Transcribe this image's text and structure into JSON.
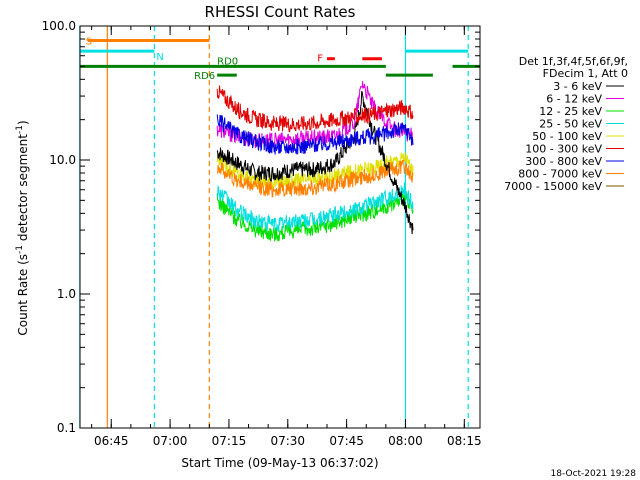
{
  "chart_data": {
    "type": "line",
    "title": "RHESSI Count Rates",
    "xlabel": "Start Time (09-May-13 06:37:02)",
    "ylabel_parts": [
      "Count Rate (s",
      "-1",
      " detector segment",
      "-1",
      ")"
    ],
    "yscale": "log",
    "ylim": [
      0.1,
      100.0
    ],
    "xlim": [
      "06:37:02",
      "08:19:00"
    ],
    "x_tick_labels": [
      "06:45",
      "07:00",
      "07:15",
      "07:30",
      "07:45",
      "08:00",
      "08:15"
    ],
    "x_tick_minutes": [
      405,
      420,
      435,
      450,
      465,
      480,
      495
    ],
    "y_tick_labels": [
      "0.1",
      "1.0",
      "10.0",
      "100.0"
    ],
    "y_tick_values": [
      0.1,
      1.0,
      10.0,
      100.0
    ],
    "grid": false,
    "legend_header": [
      "Det 1f,3f,4f,5f,6f,9f,",
      "FDecim 1, Att 0"
    ],
    "series": [
      {
        "name": "3 - 6 keV",
        "color": "#000000",
        "x": [
          "07:12",
          "07:17",
          "07:22",
          "07:27",
          "07:32",
          "07:37",
          "07:42",
          "07:47",
          "07:49",
          "07:52",
          "07:57",
          "08:00",
          "08:02"
        ],
        "y": [
          11.5,
          9.5,
          8.0,
          8.0,
          8.5,
          8.5,
          9.5,
          15.0,
          30.0,
          16.0,
          7.0,
          4.5,
          3.0
        ]
      },
      {
        "name": "6 - 12 keV",
        "color": "#e000e0",
        "x": [
          "07:12",
          "07:17",
          "07:22",
          "07:27",
          "07:32",
          "07:37",
          "07:42",
          "07:47",
          "07:49",
          "07:52",
          "07:57",
          "08:00",
          "08:02"
        ],
        "y": [
          17.0,
          15.0,
          14.0,
          14.0,
          14.5,
          14.5,
          15.0,
          19.0,
          38.0,
          24.0,
          17.0,
          16.0,
          15.0
        ]
      },
      {
        "name": "12 - 25 keV",
        "color": "#00e000",
        "x": [
          "07:12",
          "07:17",
          "07:22",
          "07:27",
          "07:32",
          "07:37",
          "07:42",
          "07:47",
          "07:52",
          "07:57",
          "08:00",
          "08:02"
        ],
        "y": [
          5.0,
          3.6,
          3.0,
          2.8,
          3.0,
          3.1,
          3.4,
          3.8,
          4.2,
          4.8,
          5.2,
          4.0
        ]
      },
      {
        "name": "25 - 50 keV",
        "color": "#00dede",
        "x": [
          "07:12",
          "07:17",
          "07:22",
          "07:27",
          "07:32",
          "07:37",
          "07:42",
          "07:47",
          "07:52",
          "07:57",
          "08:00",
          "08:02"
        ],
        "y": [
          6.0,
          4.2,
          3.5,
          3.3,
          3.5,
          3.6,
          3.9,
          4.3,
          4.8,
          5.5,
          6.0,
          4.5
        ]
      },
      {
        "name": "50 - 100 keV",
        "color": "#e0e000",
        "x": [
          "07:12",
          "07:17",
          "07:22",
          "07:27",
          "07:32",
          "07:37",
          "07:42",
          "07:47",
          "07:52",
          "07:57",
          "08:00",
          "08:02"
        ],
        "y": [
          10.0,
          8.0,
          7.0,
          6.8,
          7.0,
          7.2,
          7.6,
          8.2,
          8.8,
          9.8,
          10.5,
          8.0
        ]
      },
      {
        "name": "100 - 300 keV",
        "color": "#e00000",
        "x": [
          "07:12",
          "07:17",
          "07:22",
          "07:27",
          "07:32",
          "07:37",
          "07:42",
          "07:47",
          "07:52",
          "07:57",
          "08:00",
          "08:02"
        ],
        "y": [
          33.0,
          24.0,
          20.0,
          18.5,
          18.5,
          19.0,
          20.0,
          21.0,
          22.0,
          24.0,
          25.0,
          21.0
        ]
      },
      {
        "name": "300 - 800 keV",
        "color": "#0000e0",
        "x": [
          "07:12",
          "07:17",
          "07:22",
          "07:27",
          "07:32",
          "07:37",
          "07:42",
          "07:47",
          "07:52",
          "07:57",
          "08:00",
          "08:02"
        ],
        "y": [
          20.0,
          15.5,
          13.5,
          12.5,
          12.5,
          13.0,
          13.5,
          14.5,
          15.0,
          16.5,
          17.0,
          14.0
        ]
      },
      {
        "name": "800 - 7000 keV",
        "color": "#ff8000",
        "x": [
          "07:12",
          "07:17",
          "07:22",
          "07:27",
          "07:32",
          "07:37",
          "07:42",
          "07:47",
          "07:52",
          "07:57",
          "08:00",
          "08:02"
        ],
        "y": [
          9.0,
          7.0,
          6.3,
          6.0,
          6.1,
          6.3,
          6.7,
          7.2,
          7.8,
          8.6,
          9.0,
          7.0
        ]
      },
      {
        "name": "7000 - 15000 keV",
        "color": "#7a5a00",
        "x": [],
        "y": []
      }
    ],
    "annotations": {
      "flags": [
        {
          "label": "S",
          "color": "#ff8000",
          "segments": [
            [
              "06:39",
              "07:10"
            ]
          ],
          "level": 78
        },
        {
          "label": "N",
          "color": "#00e0e0",
          "segments": [
            [
              "06:37",
              "06:56"
            ],
            [
              "08:00",
              "08:16"
            ]
          ],
          "level": 65
        },
        {
          "label": "RD0",
          "color": "#008000",
          "segments": [
            [
              "06:37",
              "07:55"
            ],
            [
              "08:12",
              "08:19"
            ]
          ],
          "level": 50
        },
        {
          "label": "RD6",
          "color": "#008000",
          "segments": [
            [
              "07:12",
              "07:17"
            ],
            [
              "07:55",
              "08:07"
            ]
          ],
          "level": 43
        },
        {
          "label": "F",
          "color": "#ff0000",
          "segments": [
            [
              "07:40",
              "07:42"
            ],
            [
              "07:49",
              "07:54"
            ]
          ],
          "level": 57
        }
      ],
      "vlines": [
        {
          "time": "06:37",
          "color": "#00e0e0",
          "style": "solid"
        },
        {
          "time": "06:44",
          "color": "#ff8000",
          "style": "solid"
        },
        {
          "time": "06:56",
          "color": "#00e0e0",
          "style": "dashed"
        },
        {
          "time": "07:10",
          "color": "#ff8000",
          "style": "dashed"
        },
        {
          "time": "08:00",
          "color": "#00e0e0",
          "style": "solid"
        },
        {
          "time": "08:16",
          "color": "#00e0e0",
          "style": "dashed"
        }
      ]
    },
    "footer_date": "18-Oct-2021 19:28"
  }
}
